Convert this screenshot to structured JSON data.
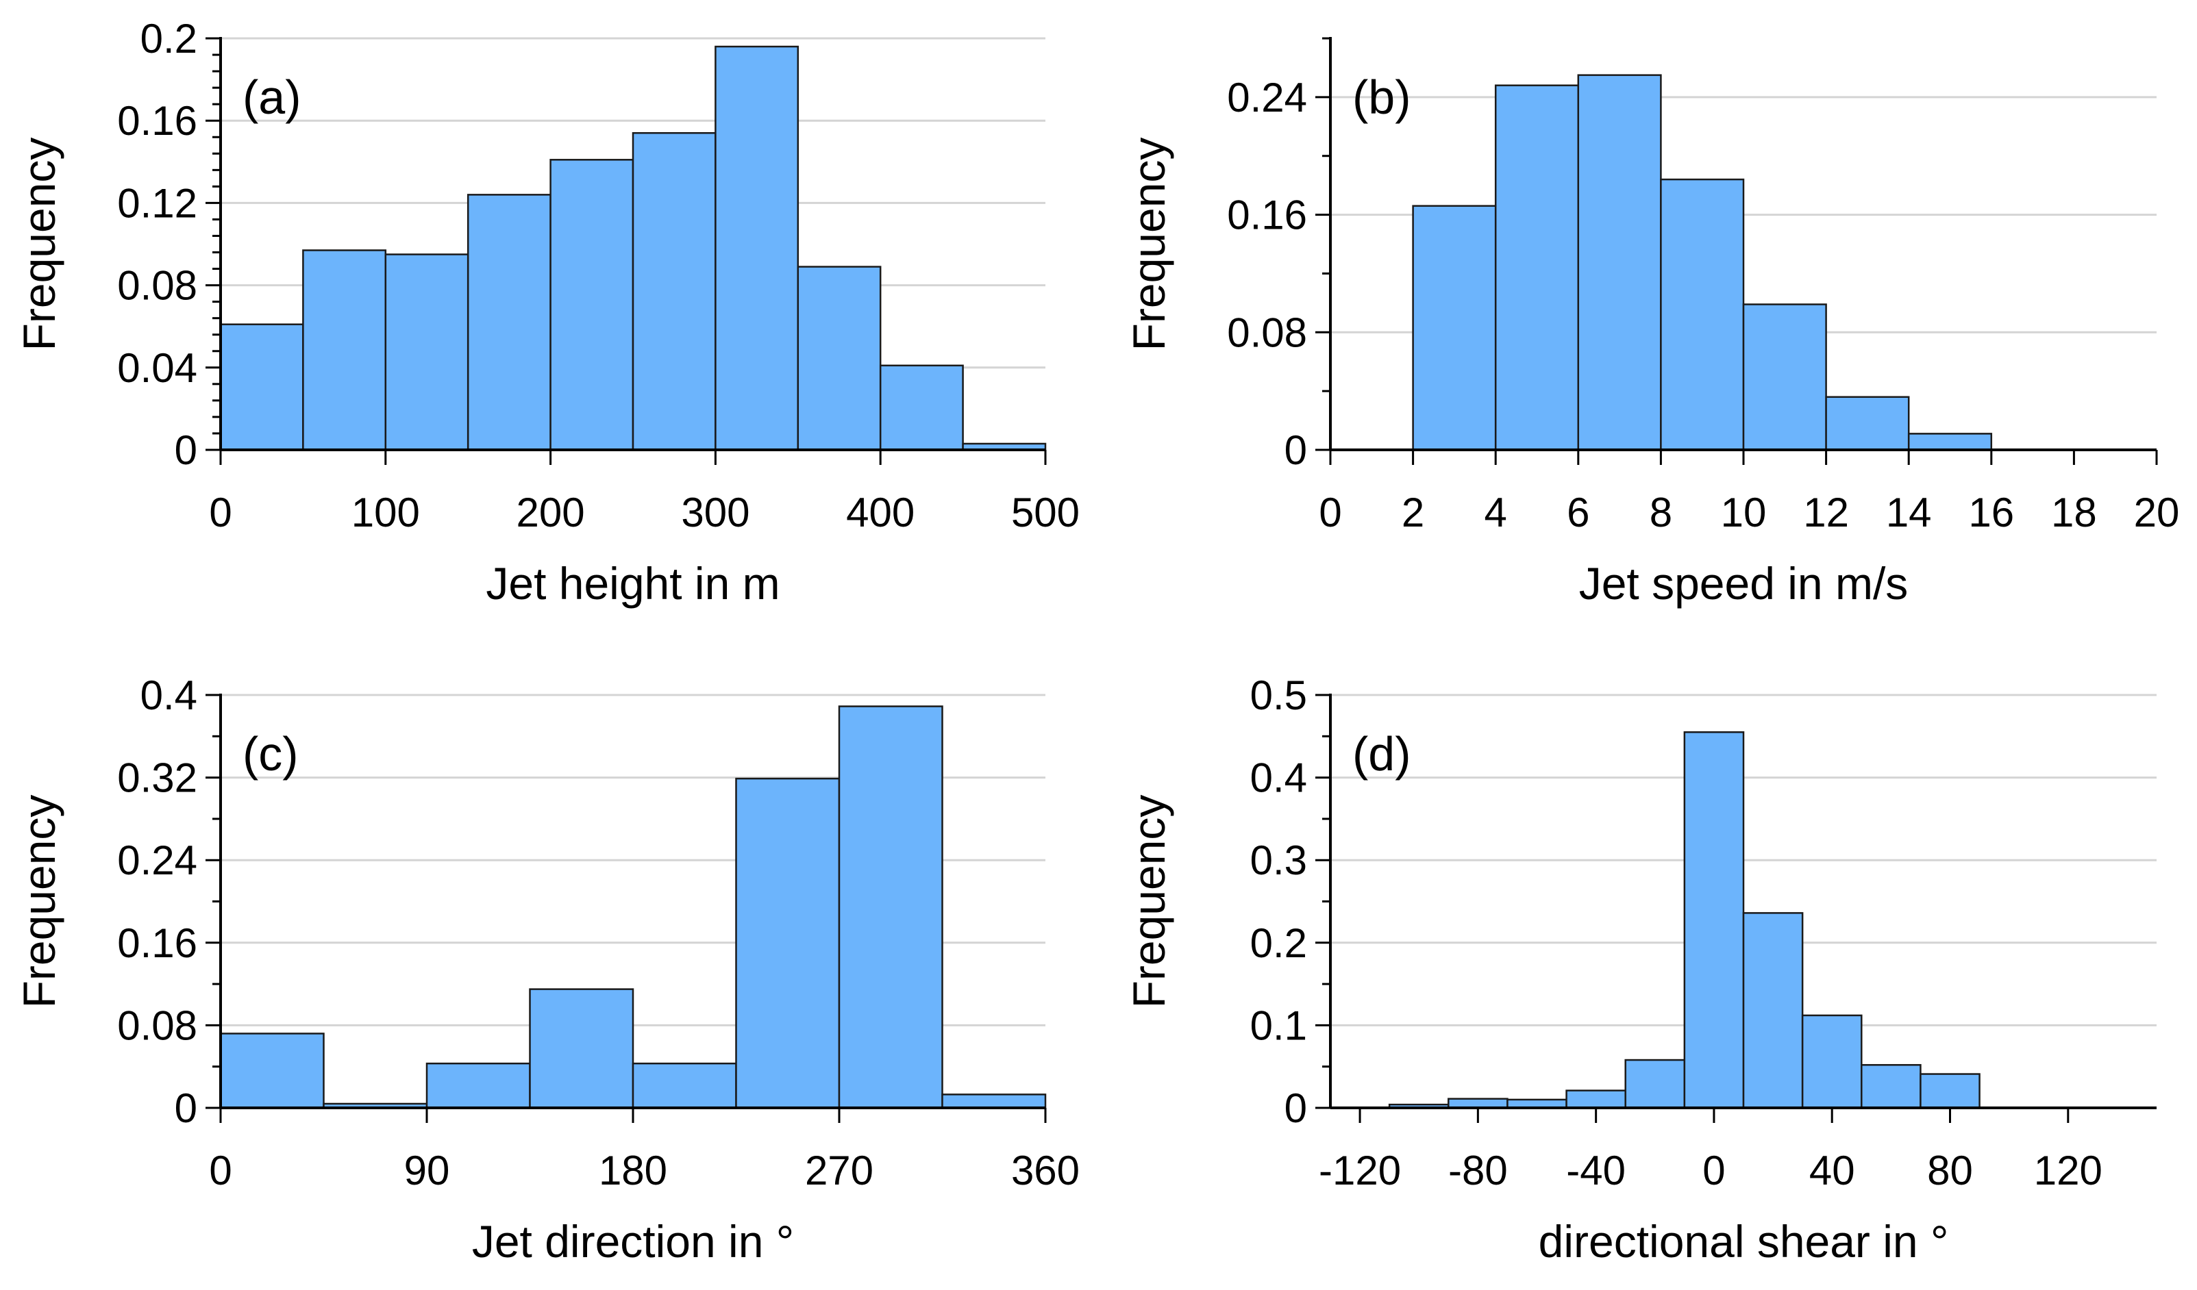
{
  "chart_data": [
    {
      "type": "bar",
      "panel_label": "(a)",
      "title": "",
      "xlabel": "Jet height in m",
      "ylabel": "Frequency",
      "xlim": [
        0,
        500
      ],
      "ylim": [
        0,
        0.2
      ],
      "xticks": [
        0,
        100,
        200,
        300,
        400,
        500
      ],
      "xtick_labels": [
        "0",
        "100",
        "200",
        "300",
        "400",
        "500"
      ],
      "yticks": [
        0,
        0.04,
        0.08,
        0.12,
        0.16,
        0.2
      ],
      "ytick_labels": [
        "0",
        "0.04",
        "0.08",
        "0.12",
        "0.16",
        "0.2"
      ],
      "bin_edges": [
        0,
        50,
        100,
        150,
        200,
        250,
        300,
        350,
        400,
        450,
        500
      ],
      "values": [
        0.061,
        0.097,
        0.095,
        0.124,
        0.141,
        0.154,
        0.196,
        0.089,
        0.041,
        0.003
      ],
      "grid": true
    },
    {
      "type": "bar",
      "panel_label": "(b)",
      "title": "",
      "xlabel": "Jet speed in m/s",
      "ylabel": "Frequency",
      "xlim": [
        0,
        20
      ],
      "ylim": [
        0,
        0.28
      ],
      "xticks": [
        0,
        2,
        4,
        6,
        8,
        10,
        12,
        14,
        16,
        18,
        20
      ],
      "xtick_labels": [
        "0",
        "2",
        "4",
        "6",
        "8",
        "10",
        "12",
        "14",
        "16",
        "18",
        "20"
      ],
      "yticks": [
        0,
        0.08,
        0.16,
        0.24
      ],
      "ytick_labels": [
        "0",
        "0.08",
        "0.16",
        "0.24"
      ],
      "bin_edges": [
        2,
        4,
        6,
        8,
        10,
        12,
        14,
        16
      ],
      "values": [
        0.166,
        0.248,
        0.255,
        0.184,
        0.099,
        0.036,
        0.011
      ],
      "grid": true
    },
    {
      "type": "bar",
      "panel_label": "(c)",
      "title": "",
      "xlabel": "Jet direction in °",
      "ylabel": "Frequency",
      "xlim": [
        0,
        360
      ],
      "ylim": [
        0,
        0.4
      ],
      "xticks": [
        0,
        90,
        180,
        270,
        360
      ],
      "xtick_labels": [
        "0",
        "90",
        "180",
        "270",
        "360"
      ],
      "yticks": [
        0,
        0.08,
        0.16,
        0.24,
        0.32,
        0.4
      ],
      "ytick_labels": [
        "0",
        "0.08",
        "0.16",
        "0.24",
        "0.32",
        "0.4"
      ],
      "bin_edges": [
        0,
        45,
        90,
        135,
        180,
        225,
        270,
        315,
        360
      ],
      "values": [
        0.072,
        0.004,
        0.043,
        0.115,
        0.043,
        0.319,
        0.389,
        0.013
      ],
      "grid": true
    },
    {
      "type": "bar",
      "panel_label": "(d)",
      "title": "",
      "xlabel": "directional shear in °",
      "ylabel": "Frequency",
      "xlim": [
        -130,
        150
      ],
      "ylim": [
        0,
        0.5
      ],
      "xticks": [
        -120,
        -80,
        -40,
        0,
        40,
        80,
        120
      ],
      "xtick_labels": [
        "-120",
        "-80",
        "-40",
        "0",
        "40",
        "80",
        "120"
      ],
      "yticks": [
        0,
        0.1,
        0.2,
        0.3,
        0.4,
        0.5
      ],
      "ytick_labels": [
        "0",
        "0.1",
        "0.2",
        "0.3",
        "0.4",
        "0.5"
      ],
      "bin_edges": [
        -110,
        -90,
        -70,
        -50,
        -30,
        -10,
        10,
        30,
        50,
        70,
        90
      ],
      "values": [
        0.004,
        0.011,
        0.01,
        0.021,
        0.058,
        0.455,
        0.236,
        0.112,
        0.052,
        0.041
      ],
      "grid": true
    }
  ]
}
